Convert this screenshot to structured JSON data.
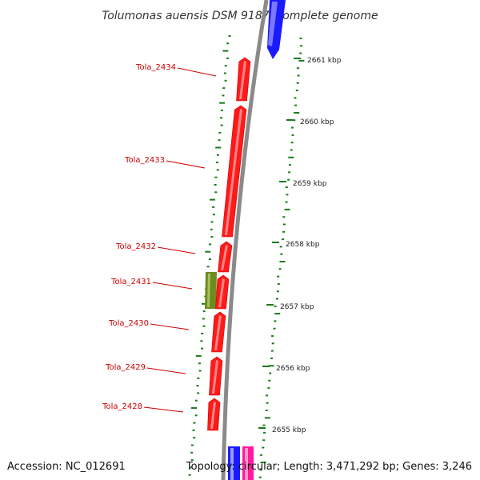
{
  "title": "Tolumonas auensis DSM 9187, complete genome",
  "accession": "Accession: NC_012691",
  "summary": "Topology: circular; Length: 3,471,292 bp; Genes: 3,246",
  "colors": {
    "backbone": "#8a8a8a",
    "gene_red": "#ff1a1a",
    "gene_olive": "#6e8c1e",
    "gene_blue": "#1a1aff",
    "gene_magenta": "#ff1a9a",
    "gc_dots": "#1a7a1a",
    "label_red": "#cc0000"
  },
  "genes": [
    {
      "label": "Tola_2434",
      "kind": "red"
    },
    {
      "label": "Tola_2433",
      "kind": "red"
    },
    {
      "label": "Tola_2432",
      "kind": "red"
    },
    {
      "label": "Tola_2431",
      "kind": "olive"
    },
    {
      "label": "Tola_2430",
      "kind": "red"
    },
    {
      "label": "Tola_2429",
      "kind": "red"
    },
    {
      "label": "Tola_2428",
      "kind": "red"
    }
  ],
  "ticks": [
    "2661 kbp",
    "2660 kbp",
    "2659 kbp",
    "2658 kbp",
    "2657 kbp",
    "2656 kbp",
    "2655 kbp"
  ]
}
